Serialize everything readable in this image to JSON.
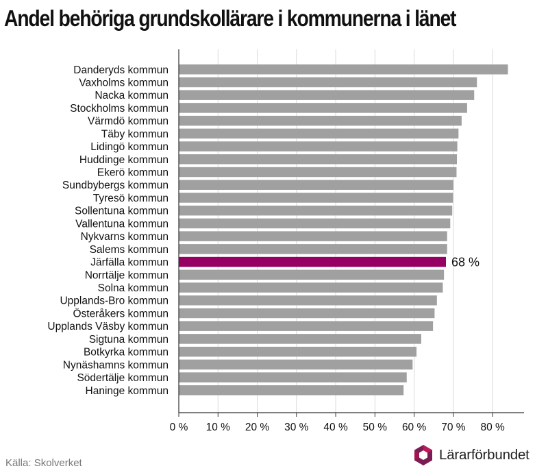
{
  "title": "Andel behöriga grundskollärare i kommunerna i länet",
  "source": "Källa: Skolverket",
  "brand": "Lärarförbundet",
  "colors": {
    "bar": "#a0a0a0",
    "highlight": "#960063",
    "grid": "#d9d9d9",
    "axis": "#333333",
    "logo_dark": "#7a1d55",
    "logo_light": "#c2185b"
  },
  "chart_data": {
    "type": "bar",
    "orientation": "horizontal",
    "categories": [
      "Danderyds kommun",
      "Vaxholms kommun",
      "Nacka kommun",
      "Stockholms kommun",
      "Värmdö kommun",
      "Täby kommun",
      "Lidingö kommun",
      "Huddinge kommun",
      "Ekerö kommun",
      "Sundbybergs kommun",
      "Tyresö kommun",
      "Sollentuna kommun",
      "Vallentuna kommun",
      "Nykvarns kommun",
      "Salems kommun",
      "Järfälla kommun",
      "Norrtälje kommun",
      "Solna kommun",
      "Upplands-Bro kommun",
      "Österåkers kommun",
      "Upplands Väsby kommun",
      "Sigtuna kommun",
      "Botkyrka kommun",
      "Nynäshamns kommun",
      "Södertälje kommun",
      "Haninge kommun"
    ],
    "values": [
      83.9,
      76.0,
      75.3,
      73.5,
      72.1,
      71.3,
      71.0,
      70.9,
      70.8,
      70.0,
      69.9,
      69.7,
      69.2,
      68.4,
      68.4,
      68.1,
      67.6,
      67.3,
      65.8,
      65.2,
      64.8,
      61.8,
      60.6,
      59.6,
      58.1,
      57.3
    ],
    "highlight": "Järfälla kommun",
    "highlight_label": "68 %",
    "x_ticks": [
      "0 %",
      "10 %",
      "20 %",
      "30 %",
      "40 %",
      "50 %",
      "60 %",
      "70 %",
      "80 %"
    ],
    "xlim": [
      0,
      88
    ],
    "grid": true
  }
}
